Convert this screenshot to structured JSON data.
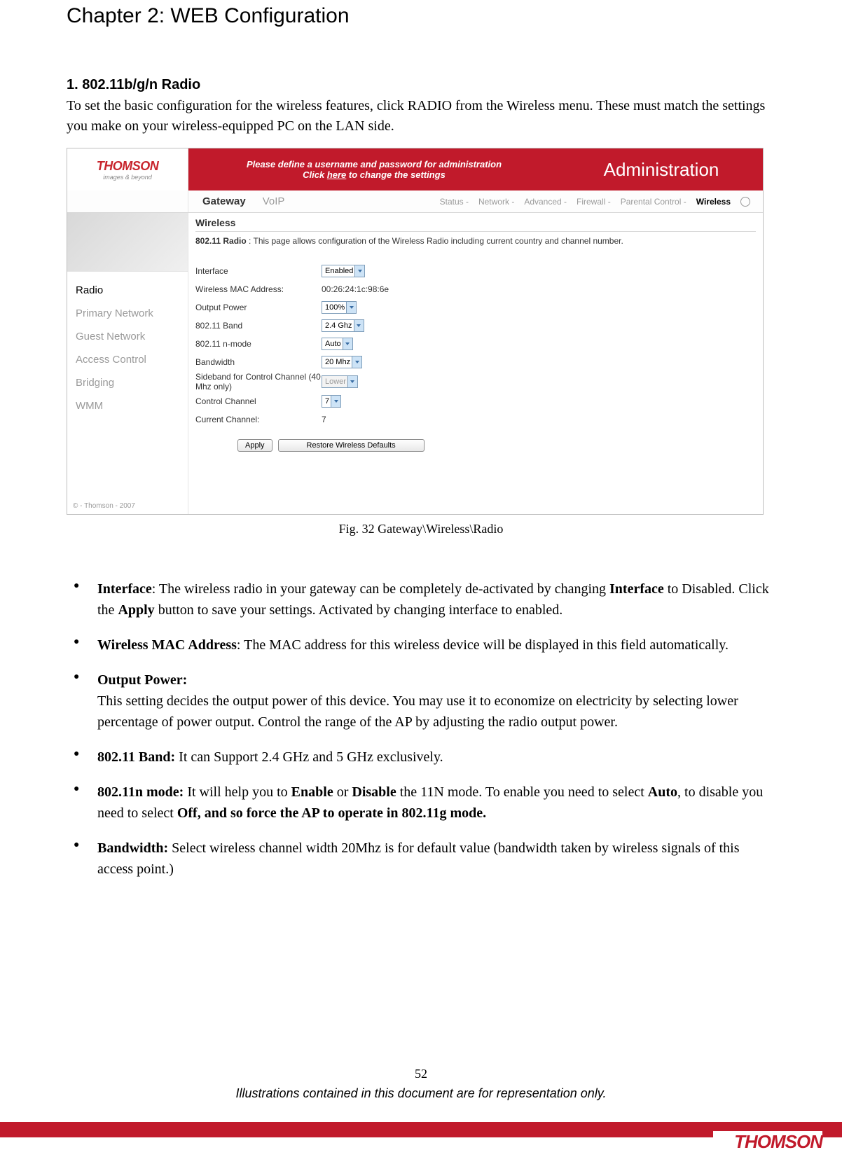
{
  "chapter_title": "Chapter 2: WEB Configuration",
  "section": {
    "heading": "1. 802.11b/g/n Radio",
    "intro": "To set the basic configuration for the wireless features, click RADIO from the Wireless menu. These must match the settings you make on your wireless-equipped PC on the LAN side."
  },
  "screenshot": {
    "logo": "THOMSON",
    "logo_sub": "images & beyond",
    "banner_l1": "Please define a username and password for administration",
    "banner_l2_pre": "Click ",
    "banner_l2_link": "here",
    "banner_l2_post": " to change the settings",
    "admin": "Administration",
    "nav_primary": [
      "Gateway",
      "VoIP"
    ],
    "nav_sub": [
      "Status -",
      "Network -",
      "Advanced -",
      "Firewall -",
      "Parental Control -",
      "Wireless"
    ],
    "sidebar": [
      "Radio",
      "Primary Network",
      "Guest Network",
      "Access Control",
      "Bridging",
      "WMM"
    ],
    "sidebar_active_index": 0,
    "main_heading": "Wireless",
    "desc_bold": "802.11 Radio",
    "desc_rest": " :  This page allows configuration of the Wireless Radio including current country and channel number.",
    "rows": [
      {
        "label": "Interface",
        "type": "select",
        "value": "Enabled"
      },
      {
        "label": "Wireless MAC Address:",
        "type": "text",
        "value": "00:26:24:1c:98:6e"
      },
      {
        "label": "Output Power",
        "type": "select",
        "value": "100%"
      },
      {
        "label": "802.11 Band",
        "type": "select",
        "value": "2.4 Ghz"
      },
      {
        "label": "802.11 n-mode",
        "type": "select",
        "value": "Auto"
      },
      {
        "label": "Bandwidth",
        "type": "select",
        "value": "20 Mhz"
      },
      {
        "label": "Sideband for Control Channel (40 Mhz only)",
        "type": "select_disabled",
        "value": "Lower"
      },
      {
        "label": "Control Channel",
        "type": "select",
        "value": "7"
      },
      {
        "label": "Current Channel:",
        "type": "text",
        "value": "7"
      }
    ],
    "btn_apply": "Apply",
    "btn_restore": "Restore Wireless Defaults",
    "copyright": "© - Thomson - 2007"
  },
  "figure_caption": "Fig. 32 Gateway\\Wireless\\Radio",
  "bullets": [
    {
      "bold": "Interface",
      "text": ": The wireless radio in your gateway can be completely de-activated by changing <b>Interface</b> to Disabled. Click the <b>Apply</b> button to save your settings. Activated by changing interface to enabled."
    },
    {
      "bold": "Wireless MAC Address",
      "text": ": The MAC address for this wireless device will be displayed in this field automatically."
    },
    {
      "bold": "Output Power:",
      "text": "<br>This setting decides the output power of this device. You may use it to economize on electricity by selecting lower percentage of power output. Control the range of the AP by adjusting the radio output power."
    },
    {
      "bold": "802.11 Band:",
      "text": " It can Support 2.4 GHz and 5 GHz exclusively."
    },
    {
      "bold": "802.11n mode:",
      "text": " It will help you to <b>Enable</b> or <b>Disable</b> the 11N mode. To enable you need to select <b>Auto</b>, to disable you need to select <b>Off, and so force the AP to operate in 802.11g mode.</b>"
    },
    {
      "bold": "Bandwidth:",
      "text": " Select wireless channel width 20Mhz is for default value (bandwidth taken by wireless signals of this access point.)"
    }
  ],
  "page_number": "52",
  "footer_note": "Illustrations contained in this document are for representation only.",
  "footer_brand": "THOMSON",
  "colors": {
    "brand_red": "#c11a2b",
    "text_gray": "#9a9a9a",
    "select_border": "#7e9db9"
  }
}
